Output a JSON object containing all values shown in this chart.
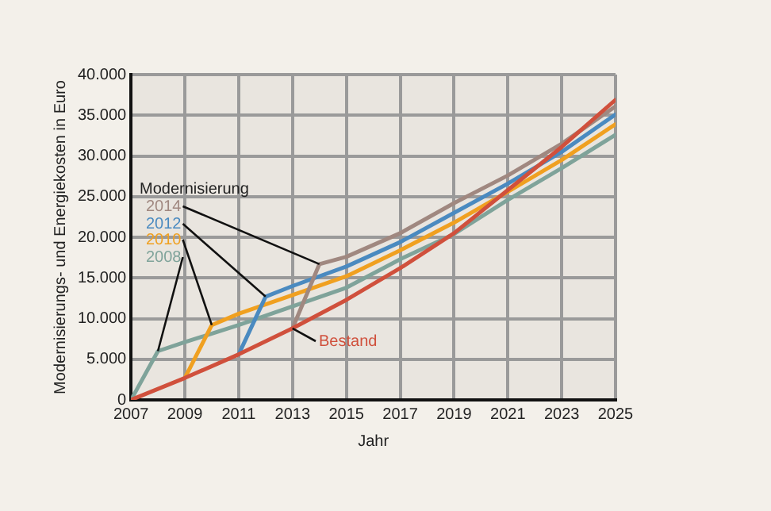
{
  "chart_data": {
    "type": "line",
    "xlabel": "Jahr",
    "ylabel": "Modernisierungs- und Energiekosten in Euro",
    "legend_title": "Modernisierung",
    "xlim": [
      2007,
      2025
    ],
    "xticks": [
      2007,
      2009,
      2011,
      2013,
      2015,
      2017,
      2019,
      2021,
      2023,
      2025
    ],
    "ylim": [
      0,
      40000
    ],
    "yticks": [
      0,
      {
        "value": 5000,
        "label": "5.000"
      },
      {
        "value": 10000,
        "label": "10.000"
      },
      {
        "value": 15000,
        "label": "15.000"
      },
      {
        "value": 20000,
        "label": "20.000"
      },
      {
        "value": 25000,
        "label": "25.000"
      },
      {
        "value": 30000,
        "label": "30.000"
      },
      {
        "value": 35000,
        "label": "35.000"
      },
      {
        "value": 40000,
        "label": "40.000"
      }
    ],
    "grid": true,
    "legend": false,
    "marker": "none",
    "line_style": "solid",
    "series": [
      {
        "name": "2008",
        "color": "#7fa39a",
        "x": [
          2007,
          2008,
          2009,
          2011,
          2013,
          2015,
          2017,
          2019,
          2021,
          2023,
          2025
        ],
        "values": [
          0,
          6000,
          7100,
          9200,
          11500,
          13800,
          17300,
          20400,
          24600,
          28500,
          32600
        ]
      },
      {
        "name": "2010",
        "color": "#f0a020",
        "x": [
          2009,
          2010,
          2011,
          2013,
          2015,
          2017,
          2019,
          2021,
          2023,
          2025
        ],
        "values": [
          2700,
          9200,
          10600,
          12900,
          15200,
          18400,
          21800,
          25600,
          29500,
          33900
        ]
      },
      {
        "name": "2012",
        "color": "#4a8ac0",
        "x": [
          2011,
          2012,
          2013,
          2015,
          2017,
          2019,
          2021,
          2023,
          2025
        ],
        "values": [
          5600,
          12700,
          14000,
          16400,
          19400,
          23000,
          26600,
          30500,
          35100
        ]
      },
      {
        "name": "2014",
        "color": "#a08880",
        "x": [
          2013,
          2014,
          2015,
          2017,
          2019,
          2021,
          2023,
          2025
        ],
        "values": [
          8800,
          16700,
          17600,
          20500,
          24200,
          27600,
          31500,
          36100
        ]
      },
      {
        "name": "Bestand",
        "color": "#d0503c",
        "x": [
          2007,
          2009,
          2011,
          2013,
          2015,
          2017,
          2019,
          2021,
          2023,
          2025
        ],
        "values": [
          0,
          2700,
          5600,
          8800,
          12300,
          16200,
          20500,
          25800,
          31100,
          36900
        ]
      }
    ]
  }
}
